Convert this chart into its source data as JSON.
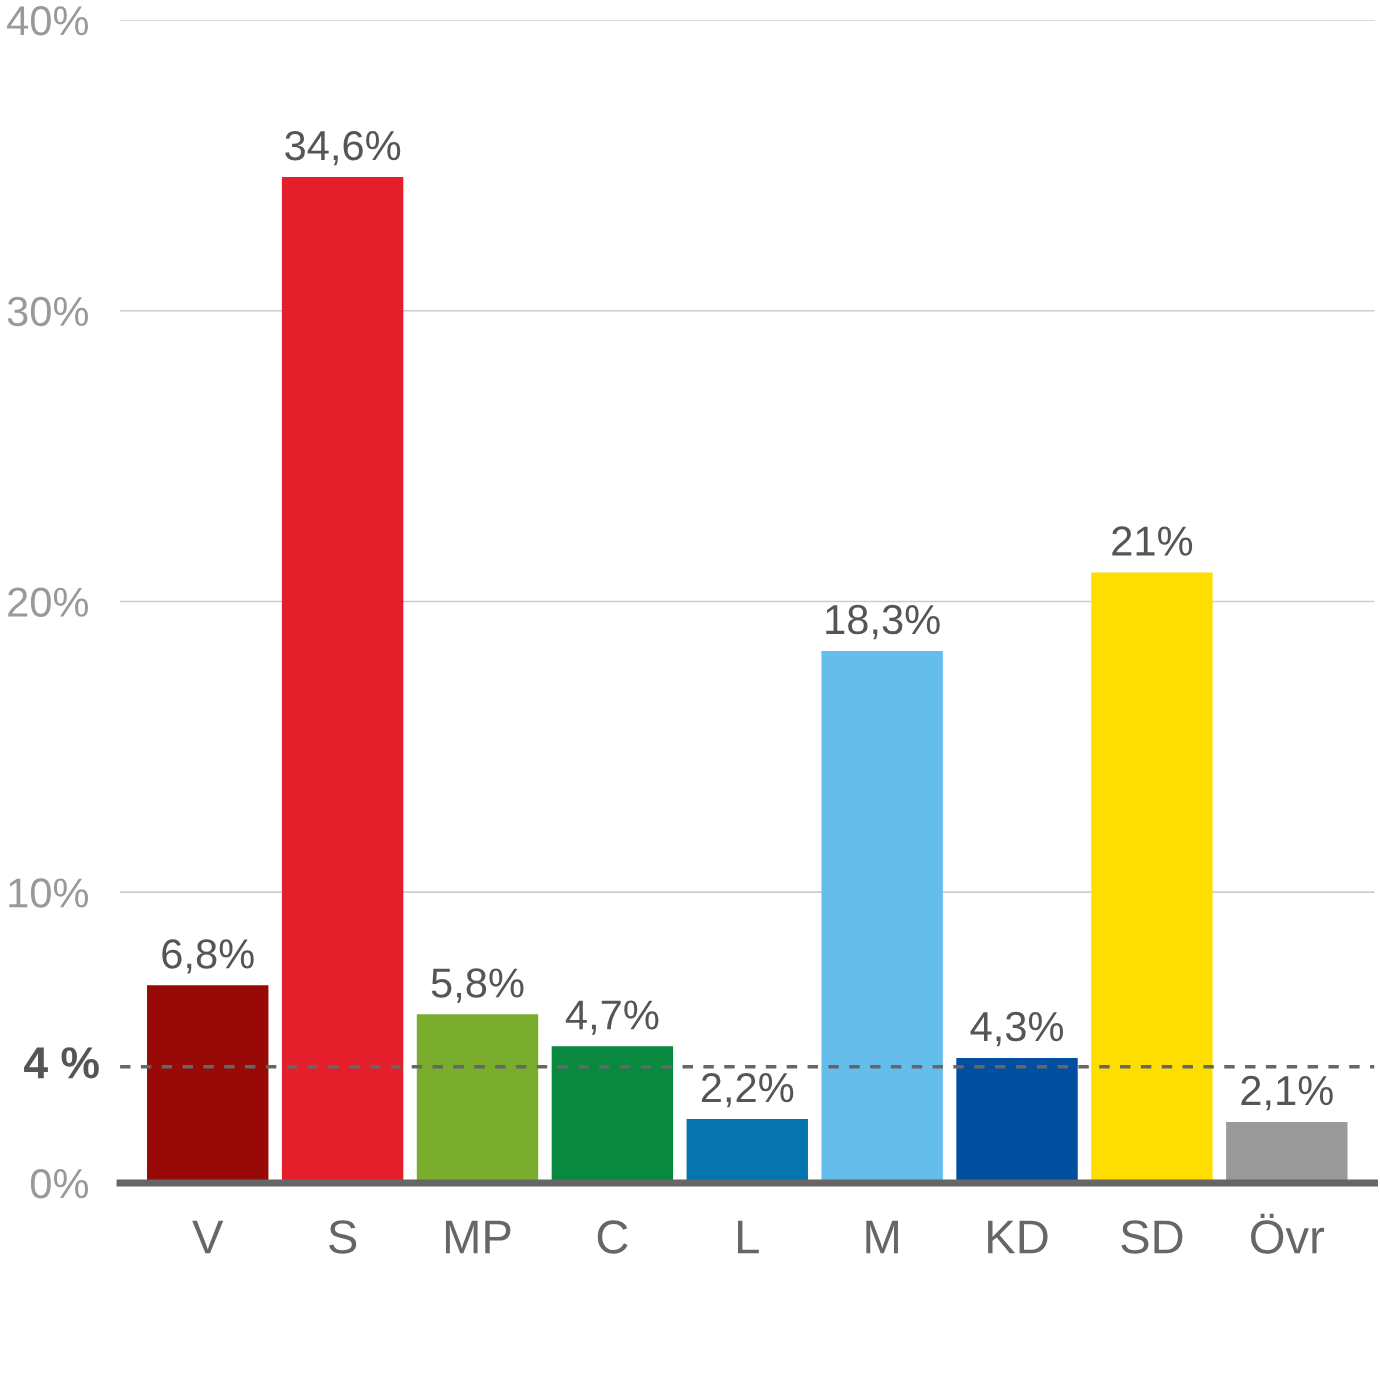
{
  "chart_data": {
    "type": "bar",
    "categories": [
      "V",
      "S",
      "MP",
      "C",
      "L",
      "M",
      "KD",
      "SD",
      "Övr"
    ],
    "values": [
      6.8,
      34.6,
      5.8,
      4.7,
      2.2,
      18.3,
      4.3,
      21,
      2.1
    ],
    "colors": [
      "#970a08",
      "#e41e2b",
      "#7aac2e",
      "#098940",
      "#0675ae",
      "#65bdeb",
      "#014f9e",
      "#fdde00",
      "#9a9a9a"
    ],
    "value_labels": [
      "6,8%",
      "34,6%",
      "5,8%",
      "4,7%",
      "2,2%",
      "18,3%",
      "4,3%",
      "21%",
      "2,1%"
    ],
    "ylim": [
      0,
      40
    ],
    "yticks": [
      {
        "value": 0,
        "label": "0%"
      },
      {
        "value": 10,
        "label": "10%"
      },
      {
        "value": 20,
        "label": "20%"
      },
      {
        "value": 30,
        "label": "30%"
      },
      {
        "value": 40,
        "label": "40%"
      }
    ],
    "grid": "y",
    "ref_lines": [
      {
        "axis": "y",
        "value": 4,
        "label": "4 %",
        "color": "#666666",
        "line_style": "dashed"
      }
    ]
  }
}
